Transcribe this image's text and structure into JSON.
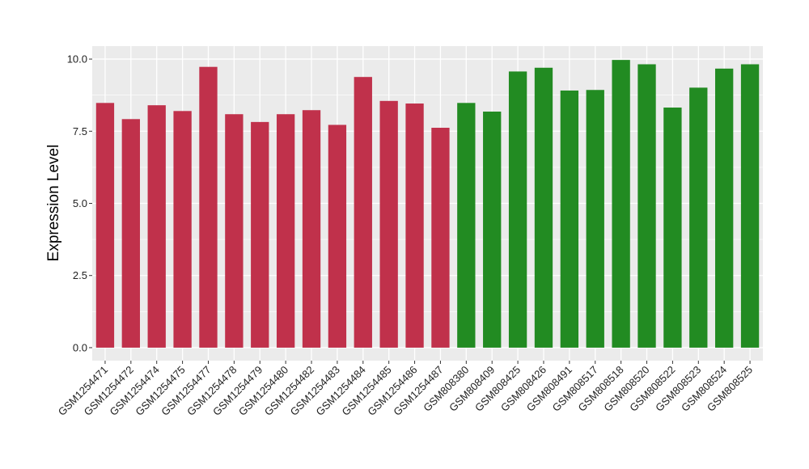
{
  "chart_data": {
    "type": "bar",
    "title": "",
    "xlabel": "",
    "ylabel": "Expression Level",
    "ylim": [
      -0.45,
      10.45
    ],
    "yticks": [
      0.0,
      2.5,
      5.0,
      7.5,
      10.0
    ],
    "ytick_labels": [
      "0.0",
      "2.5",
      "5.0",
      "7.5",
      "10.0"
    ],
    "grid": true,
    "categories": [
      "GSM1254471",
      "GSM1254472",
      "GSM1254474",
      "GSM1254475",
      "GSM1254477",
      "GSM1254478",
      "GSM1254479",
      "GSM1254480",
      "GSM1254482",
      "GSM1254483",
      "GSM1254484",
      "GSM1254485",
      "GSM1254486",
      "GSM1254487",
      "GSM808380",
      "GSM808409",
      "GSM808425",
      "GSM808426",
      "GSM808491",
      "GSM808517",
      "GSM808518",
      "GSM808520",
      "GSM808522",
      "GSM808523",
      "GSM808524",
      "GSM808525"
    ],
    "values": [
      8.48,
      7.92,
      8.4,
      8.2,
      9.73,
      8.09,
      7.82,
      8.09,
      8.23,
      7.72,
      9.38,
      8.55,
      8.46,
      7.62,
      8.48,
      8.18,
      9.57,
      9.7,
      8.91,
      8.93,
      9.97,
      9.82,
      8.32,
      9.01,
      9.67,
      9.82
    ],
    "colors": [
      "#C0314B",
      "#C0314B",
      "#C0314B",
      "#C0314B",
      "#C0314B",
      "#C0314B",
      "#C0314B",
      "#C0314B",
      "#C0314B",
      "#C0314B",
      "#C0314B",
      "#C0314B",
      "#C0314B",
      "#C0314B",
      "#228B22",
      "#228B22",
      "#228B22",
      "#228B22",
      "#228B22",
      "#228B22",
      "#228B22",
      "#228B22",
      "#228B22",
      "#228B22",
      "#228B22",
      "#228B22"
    ],
    "panel_background": "#EBEBEB",
    "grid_color": "#FFFFFF"
  }
}
